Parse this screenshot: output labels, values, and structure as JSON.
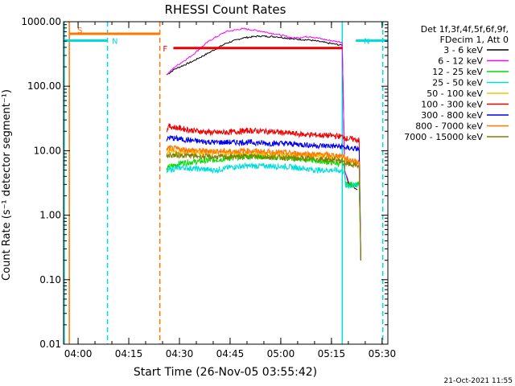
{
  "chart_data": {
    "type": "line",
    "title": "RHESSI Count Rates",
    "xlabel": "Start Time (26-Nov-05 03:55:42)",
    "ylabel": "Count Rate (s⁻¹ detector segment⁻¹)",
    "yscale": "log",
    "xlim_minutes": [
      0,
      96
    ],
    "ylim": [
      0.01,
      1000
    ],
    "x_tick_labels": [
      "04:00",
      "04:15",
      "04:30",
      "04:45",
      "05:00",
      "05:15",
      "05:30"
    ],
    "x_tick_minutes": [
      4.3,
      19.3,
      34.3,
      49.3,
      64.3,
      79.3,
      94.3
    ],
    "y_tick_labels": [
      "1000.00",
      "100.00",
      "10.00",
      "1.00",
      "0.10",
      "0.01"
    ],
    "y_tick_values": [
      1000,
      100,
      10,
      1,
      0.1,
      0.01
    ],
    "grid": false,
    "legend_position": "right",
    "legend_header": [
      "Det 1f,3f,4f,5f,6f,9f,",
      "FDecim 1, Att 0"
    ],
    "series": [
      {
        "name": "3 - 6 keV",
        "color": "#000000",
        "x": [
          30.5,
          33,
          38,
          43,
          48,
          53,
          58,
          63,
          68,
          73,
          78,
          82.5,
          83.2,
          84.5,
          86,
          87
        ],
        "y": [
          150,
          185,
          240,
          330,
          460,
          560,
          600,
          585,
          540,
          520,
          470,
          430,
          5,
          3.0,
          2.7,
          2.5
        ]
      },
      {
        "name": "6 - 12 keV",
        "color": "#ff00ff",
        "x": [
          30.5,
          33,
          38,
          43,
          48,
          53,
          58,
          63,
          68,
          73,
          78,
          82.5,
          83.2,
          84.5,
          86,
          87
        ],
        "y": [
          150,
          200,
          300,
          500,
          700,
          780,
          720,
          640,
          560,
          590,
          520,
          480,
          5,
          3.2,
          2.9,
          2.7
        ]
      },
      {
        "name": "12 - 25 keV",
        "color": "#00dd00",
        "x": [
          30.5,
          31,
          35,
          40,
          45,
          50,
          55,
          60,
          65,
          70,
          75,
          80,
          83,
          83.5,
          86,
          87.5,
          88
        ],
        "y": [
          5.0,
          5.5,
          6.5,
          6.8,
          7.2,
          7.8,
          8.2,
          8.0,
          7.8,
          7.5,
          7.0,
          6.5,
          6.2,
          3.0,
          3.0,
          3.0,
          0.2
        ]
      },
      {
        "name": "25 - 50 keV",
        "color": "#00dddd",
        "x": [
          30.5,
          31,
          35,
          40,
          45,
          50,
          55,
          60,
          65,
          70,
          75,
          80,
          83,
          83.5,
          86,
          87.5,
          88
        ],
        "y": [
          4.5,
          5.0,
          5.5,
          5.2,
          5.0,
          5.6,
          5.8,
          5.8,
          5.7,
          5.4,
          5.0,
          5.0,
          4.8,
          2.8,
          2.9,
          3.0,
          0.2
        ]
      },
      {
        "name": "50 - 100 keV",
        "color": "#ffbb00",
        "x": [
          30.5,
          31,
          35,
          40,
          45,
          50,
          55,
          60,
          65,
          70,
          75,
          80,
          83,
          83.5,
          86,
          87.5,
          88
        ],
        "y": [
          9.0,
          10.0,
          9.8,
          9.6,
          9.4,
          9.2,
          9.0,
          8.8,
          8.6,
          8.5,
          8.4,
          8.2,
          8.0,
          7.0,
          6.8,
          6.5,
          0.2
        ]
      },
      {
        "name": "100 - 300 keV",
        "color": "#ee0000",
        "x": [
          30.5,
          31,
          35,
          40,
          45,
          50,
          55,
          60,
          65,
          70,
          75,
          80,
          83,
          83.5,
          86,
          87.5,
          88
        ],
        "y": [
          20,
          24,
          22,
          20,
          19,
          19.5,
          20.5,
          20,
          19,
          18,
          17.5,
          17,
          16.5,
          15.5,
          15,
          14.5,
          0.2
        ]
      },
      {
        "name": "300 - 800 keV",
        "color": "#0000ee",
        "x": [
          30.5,
          31,
          35,
          40,
          45,
          50,
          55,
          60,
          65,
          70,
          75,
          80,
          83,
          83.5,
          86,
          87.5,
          88
        ],
        "y": [
          14,
          16,
          15,
          14,
          13.5,
          13.5,
          13.5,
          13,
          13,
          12.5,
          12,
          11.8,
          11.5,
          11,
          10.8,
          10.5,
          0.2
        ]
      },
      {
        "name": "800 - 7000 keV",
        "color": "#ff7700",
        "x": [
          30.5,
          31,
          35,
          40,
          45,
          50,
          55,
          60,
          65,
          70,
          75,
          80,
          83,
          83.5,
          86,
          87.5,
          88
        ],
        "y": [
          10,
          11,
          10.5,
          10,
          9.8,
          9.8,
          10.0,
          9.6,
          9.3,
          9.0,
          8.8,
          8.5,
          8.2,
          7.5,
          7.0,
          6.8,
          0.2
        ]
      },
      {
        "name": "7000 - 15000 keV",
        "color": "#808000",
        "x": [
          30.5,
          31,
          35,
          40,
          45,
          50,
          55,
          60,
          65,
          70,
          75,
          80,
          83,
          83.5,
          86,
          87.5,
          88
        ],
        "y": [
          8.0,
          8.5,
          8.5,
          8.2,
          8.0,
          8.0,
          8.2,
          8.0,
          7.8,
          7.6,
          7.4,
          7.2,
          7.0,
          6.3,
          6.0,
          5.8,
          0.2
        ]
      }
    ],
    "annotations": [
      {
        "label": "S",
        "color": "#ff7700",
        "x_start": 1.7,
        "x_end": 28.5,
        "y": 650
      },
      {
        "label": "N",
        "color": "#00dddd",
        "x_start": 0,
        "x_end": 13.0,
        "y": 510
      },
      {
        "label": "N",
        "color": "#00dddd",
        "x_start": 86.5,
        "x_end": 96,
        "y": 510
      },
      {
        "label": "F",
        "color": "#ee0000",
        "x_start": 32.5,
        "x_end": 82.5,
        "y": 390
      }
    ],
    "vertical_markers": [
      {
        "color": "#00dddd",
        "style": "solid",
        "x": 0.2
      },
      {
        "color": "#ff7700",
        "style": "solid",
        "x": 1.7
      },
      {
        "color": "#00dddd",
        "style": "dashed",
        "x": 13.0
      },
      {
        "color": "#ff7700",
        "style": "dashed",
        "x": 28.5
      },
      {
        "color": "#00dddd",
        "style": "solid",
        "x": 82.5
      },
      {
        "color": "#00dddd",
        "style": "dashed",
        "x": 94.5
      }
    ]
  },
  "footer": {
    "timestamp": "21-Oct-2021 11:55"
  }
}
